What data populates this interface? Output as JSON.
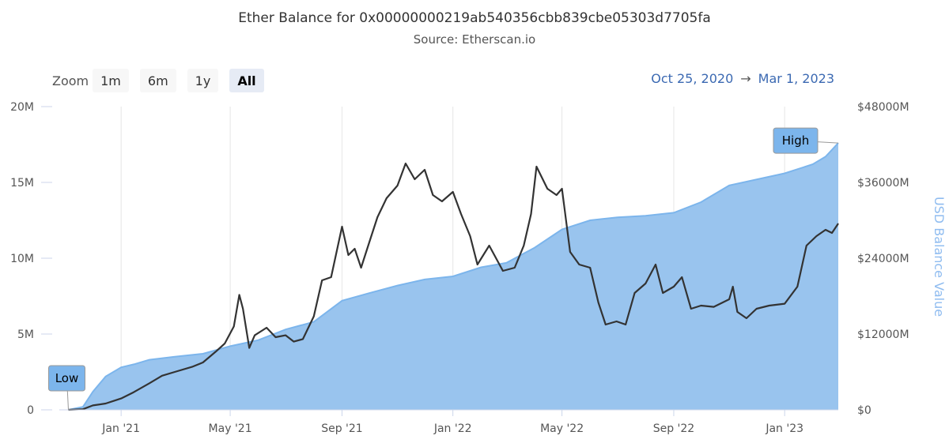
{
  "title": "Ether Balance for 0x00000000219ab540356cbb839cbe05303d7705fa",
  "subtitle": "Source: Etherscan.io",
  "zoom": {
    "label": "Zoom",
    "buttons": [
      "1m",
      "6m",
      "1y",
      "All"
    ],
    "active": "All"
  },
  "range": {
    "from": "Oct 25, 2020",
    "arrow": "→",
    "to": "Mar 1, 2023"
  },
  "colors": {
    "area": "#99c4ee",
    "area_line": "#7cb5ec",
    "line": "#333333",
    "flag": "#7cb5ec",
    "grid": "#e6e6e6"
  },
  "chart_data": {
    "type": "area",
    "x_type": "date",
    "x_range": [
      "2020-10-25",
      "2023-03-01"
    ],
    "x_ticks": [
      {
        "date": "2021-01-01",
        "label": "Jan '21"
      },
      {
        "date": "2021-05-01",
        "label": "May '21"
      },
      {
        "date": "2021-09-01",
        "label": "Sep '21"
      },
      {
        "date": "2022-01-01",
        "label": "Jan '22"
      },
      {
        "date": "2022-05-01",
        "label": "May '22"
      },
      {
        "date": "2022-09-01",
        "label": "Sep '22"
      },
      {
        "date": "2023-01-01",
        "label": "Jan '23"
      }
    ],
    "y_left": {
      "range": [
        0,
        20
      ],
      "ticks": [
        "0",
        "5M",
        "10M",
        "15M",
        "20M"
      ],
      "tick_values": [
        0,
        5,
        10,
        15,
        20
      ]
    },
    "y_right": {
      "title": "USD Balance Value",
      "range": [
        0,
        48000
      ],
      "ticks": [
        "$0",
        "$12000M",
        "$24000M",
        "$36000M",
        "$48000M"
      ],
      "tick_values": [
        0,
        12000,
        24000,
        36000,
        48000
      ]
    },
    "grid": "vertical",
    "series": [
      {
        "axis": "left",
        "style": "area",
        "points": [
          [
            "2020-11-04",
            0.0
          ],
          [
            "2020-11-20",
            0.2
          ],
          [
            "2020-12-01",
            1.2
          ],
          [
            "2020-12-15",
            2.2
          ],
          [
            "2021-01-01",
            2.8
          ],
          [
            "2021-01-15",
            3.0
          ],
          [
            "2021-02-01",
            3.3
          ],
          [
            "2021-03-01",
            3.5
          ],
          [
            "2021-04-01",
            3.7
          ],
          [
            "2021-05-01",
            4.2
          ],
          [
            "2021-06-01",
            4.6
          ],
          [
            "2021-07-01",
            5.3
          ],
          [
            "2021-08-01",
            5.8
          ],
          [
            "2021-09-01",
            7.2
          ],
          [
            "2021-10-01",
            7.7
          ],
          [
            "2021-11-01",
            8.2
          ],
          [
            "2021-12-01",
            8.6
          ],
          [
            "2022-01-01",
            8.8
          ],
          [
            "2022-02-01",
            9.4
          ],
          [
            "2022-03-01",
            9.7
          ],
          [
            "2022-04-01",
            10.7
          ],
          [
            "2022-05-01",
            11.9
          ],
          [
            "2022-06-01",
            12.5
          ],
          [
            "2022-07-01",
            12.7
          ],
          [
            "2022-08-01",
            12.8
          ],
          [
            "2022-09-01",
            13.0
          ],
          [
            "2022-10-01",
            13.7
          ],
          [
            "2022-11-01",
            14.8
          ],
          [
            "2023-01-01",
            15.6
          ],
          [
            "2023-02-01",
            16.2
          ],
          [
            "2023-02-15",
            16.7
          ],
          [
            "2023-03-01",
            17.6
          ]
        ]
      },
      {
        "axis": "right",
        "style": "line",
        "points": [
          [
            "2020-11-04",
            0
          ],
          [
            "2020-11-20",
            100
          ],
          [
            "2020-12-01",
            700
          ],
          [
            "2020-12-15",
            1000
          ],
          [
            "2021-01-01",
            1800
          ],
          [
            "2021-01-15",
            2800
          ],
          [
            "2021-02-01",
            4200
          ],
          [
            "2021-02-15",
            5400
          ],
          [
            "2021-03-01",
            6000
          ],
          [
            "2021-03-20",
            6800
          ],
          [
            "2021-04-01",
            7500
          ],
          [
            "2021-04-15",
            9200
          ],
          [
            "2021-04-25",
            10500
          ],
          [
            "2021-05-05",
            13200
          ],
          [
            "2021-05-11",
            18200
          ],
          [
            "2021-05-15",
            16000
          ],
          [
            "2021-05-22",
            9800
          ],
          [
            "2021-05-28",
            11800
          ],
          [
            "2021-06-10",
            13000
          ],
          [
            "2021-06-20",
            11500
          ],
          [
            "2021-07-01",
            11800
          ],
          [
            "2021-07-10",
            10800
          ],
          [
            "2021-07-20",
            11200
          ],
          [
            "2021-08-01",
            14800
          ],
          [
            "2021-08-10",
            20500
          ],
          [
            "2021-08-20",
            21000
          ],
          [
            "2021-09-01",
            29000
          ],
          [
            "2021-09-08",
            24500
          ],
          [
            "2021-09-15",
            25500
          ],
          [
            "2021-09-22",
            22500
          ],
          [
            "2021-10-01",
            26500
          ],
          [
            "2021-10-10",
            30500
          ],
          [
            "2021-10-20",
            33500
          ],
          [
            "2021-11-01",
            35500
          ],
          [
            "2021-11-10",
            39000
          ],
          [
            "2021-11-20",
            36500
          ],
          [
            "2021-12-01",
            38000
          ],
          [
            "2021-12-10",
            34000
          ],
          [
            "2021-12-20",
            33000
          ],
          [
            "2022-01-01",
            34500
          ],
          [
            "2022-01-10",
            31000
          ],
          [
            "2022-01-20",
            27500
          ],
          [
            "2022-01-28",
            23000
          ],
          [
            "2022-02-10",
            26000
          ],
          [
            "2022-02-25",
            22000
          ],
          [
            "2022-03-10",
            22500
          ],
          [
            "2022-03-20",
            26000
          ],
          [
            "2022-03-28",
            31000
          ],
          [
            "2022-04-03",
            38500
          ],
          [
            "2022-04-15",
            35000
          ],
          [
            "2022-04-25",
            34000
          ],
          [
            "2022-05-01",
            35000
          ],
          [
            "2022-05-10",
            25000
          ],
          [
            "2022-05-20",
            23000
          ],
          [
            "2022-06-01",
            22500
          ],
          [
            "2022-06-10",
            17000
          ],
          [
            "2022-06-18",
            13500
          ],
          [
            "2022-06-30",
            14000
          ],
          [
            "2022-07-10",
            13500
          ],
          [
            "2022-07-20",
            18500
          ],
          [
            "2022-08-01",
            20000
          ],
          [
            "2022-08-12",
            23000
          ],
          [
            "2022-08-20",
            18500
          ],
          [
            "2022-09-01",
            19500
          ],
          [
            "2022-09-10",
            21000
          ],
          [
            "2022-09-20",
            16000
          ],
          [
            "2022-10-01",
            16500
          ],
          [
            "2022-10-15",
            16300
          ],
          [
            "2022-11-01",
            17500
          ],
          [
            "2022-11-05",
            19500
          ],
          [
            "2022-11-10",
            15500
          ],
          [
            "2022-11-20",
            14500
          ],
          [
            "2022-12-01",
            16000
          ],
          [
            "2022-12-15",
            16500
          ],
          [
            "2023-01-01",
            16800
          ],
          [
            "2023-01-15",
            19500
          ],
          [
            "2023-01-25",
            26000
          ],
          [
            "2023-02-05",
            27500
          ],
          [
            "2023-02-15",
            28500
          ],
          [
            "2023-02-22",
            28000
          ],
          [
            "2023-03-01",
            29500
          ]
        ]
      }
    ],
    "flags": [
      {
        "text": "Low",
        "date": "2020-11-04",
        "series": 0
      },
      {
        "text": "High",
        "date": "2023-03-01",
        "series": 0
      }
    ]
  }
}
